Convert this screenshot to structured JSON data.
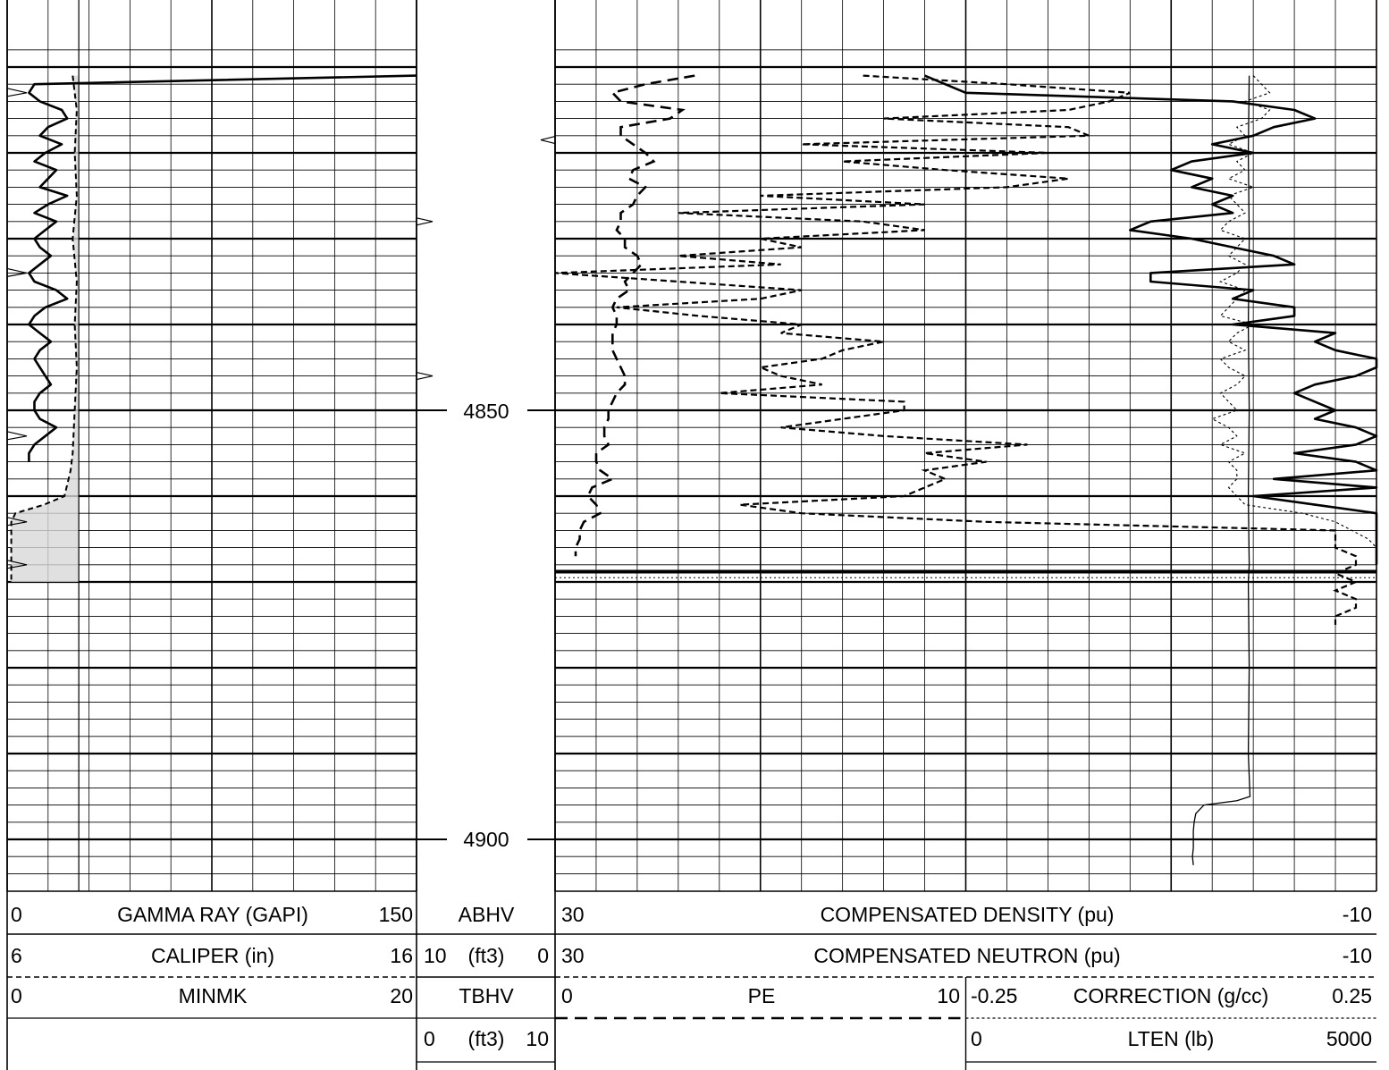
{
  "chart_data": {
    "type": "line",
    "depth_axis": {
      "labels": [
        "4850",
        "4900"
      ],
      "unit": ""
    },
    "track1": {
      "scales": [
        {
          "left": "0",
          "name": "GAMMA RAY (GAPI)",
          "right": "150"
        },
        {
          "left": "6",
          "name": "CALIPER (in)",
          "right": "16"
        },
        {
          "left": "0",
          "name": "MINMK",
          "right": "20"
        }
      ]
    },
    "depth_track": {
      "scales": [
        {
          "name": "ABHV",
          "left": "10",
          "unit": "(ft3)",
          "right": "0"
        },
        {
          "name": "TBHV",
          "left": "0",
          "unit": "(ft3)",
          "right": "10"
        }
      ]
    },
    "track2": {
      "scales": [
        {
          "left": "30",
          "name": "COMPENSATED DENSITY (pu)",
          "right": "-10"
        },
        {
          "left": "30",
          "name": "COMPENSATED NEUTRON (pu)",
          "right": "-10"
        },
        {
          "left": "0",
          "name": "PE",
          "right": "10"
        },
        {
          "left": "-0.25",
          "name": "CORRECTION (g/cc)",
          "right": "0.25"
        },
        {
          "left": "0",
          "name": "LTEN (lb)",
          "right": "5000"
        }
      ]
    },
    "series": [
      {
        "name": "GAMMA RAY (GAPI)",
        "depth": [
          4811,
          4812,
          4813,
          4814,
          4815,
          4816,
          4817,
          4818,
          4819,
          4820,
          4821,
          4822,
          4823,
          4824,
          4825,
          4826,
          4827,
          4828,
          4829,
          4830,
          4831,
          4832,
          4833,
          4834,
          4835,
          4836,
          4837,
          4838,
          4839,
          4840,
          4841,
          4842,
          4843,
          4844,
          4845,
          4846,
          4847,
          4848,
          4849,
          4850,
          4851,
          4852,
          4853,
          4854,
          4855,
          4856
        ],
        "values": [
          150,
          10,
          8,
          12,
          20,
          22,
          15,
          12,
          20,
          14,
          10,
          18,
          15,
          12,
          22,
          15,
          10,
          18,
          14,
          10,
          12,
          16,
          12,
          8,
          10,
          18,
          22,
          14,
          10,
          8,
          12,
          16,
          12,
          10,
          12,
          14,
          16,
          12,
          10,
          10,
          12,
          18,
          14,
          10,
          8,
          8
        ]
      },
      {
        "name": "CALIPER (in)",
        "depth": [
          4811,
          4815,
          4820,
          4825,
          4830,
          4835,
          4840,
          4845,
          4850,
          4855,
          4857,
          4860,
          4861,
          4862,
          4863,
          4870
        ],
        "values": [
          7.6,
          7.7,
          7.65,
          7.7,
          7.6,
          7.7,
          7.65,
          7.7,
          7.65,
          7.6,
          7.55,
          7.4,
          6.9,
          6.2,
          6.1,
          6.1
        ]
      },
      {
        "name": "COMPENSATED DENSITY (pu)",
        "depth": [
          4811,
          4812,
          4813,
          4814,
          4815,
          4816,
          4817,
          4818,
          4819,
          4820,
          4821,
          4822,
          4823,
          4824,
          4825,
          4826,
          4827,
          4828,
          4829,
          4830,
          4831,
          4832,
          4833,
          4834,
          4835,
          4836,
          4837,
          4838,
          4839,
          4840,
          4841,
          4842,
          4843,
          4844,
          4845,
          4846,
          4847,
          4848,
          4849,
          4850,
          4851,
          4852,
          4853,
          4854,
          4855,
          4856,
          4857,
          4858,
          4859,
          4860,
          4861,
          4862,
          4863,
          4864,
          4865,
          4866,
          4867,
          4868
        ],
        "values": [
          12,
          11,
          10,
          -3,
          -6,
          -7,
          -5,
          -4,
          -2,
          -4,
          -1,
          0,
          -2,
          -1,
          -3,
          -2,
          -3,
          1,
          2,
          -1,
          -3,
          -5,
          -6,
          1,
          1,
          -4,
          -3,
          -6,
          -6,
          -3,
          -8,
          -7,
          -8,
          -12,
          -10,
          -9,
          -7,
          -6,
          -7,
          -8,
          -7,
          -9,
          -10,
          -9,
          -6,
          -9,
          -11,
          -5,
          -10,
          -4,
          -7,
          -13,
          -10,
          -13,
          -11,
          -12,
          -20,
          -20
        ]
      },
      {
        "name": "COMPENSATED NEUTRON (pu)",
        "depth": [
          4811,
          4812,
          4813,
          4814,
          4815,
          4816,
          4817,
          4818,
          4819,
          4820,
          4821,
          4822,
          4823,
          4824,
          4825,
          4826,
          4827,
          4828,
          4829,
          4830,
          4831,
          4832,
          4833,
          4834,
          4835,
          4836,
          4837,
          4838,
          4839,
          4840,
          4841,
          4842,
          4843,
          4844,
          4845,
          4846,
          4847,
          4848,
          4849,
          4850,
          4851,
          4852,
          4853,
          4854,
          4855,
          4856,
          4857,
          4858,
          4859,
          4860,
          4861,
          4862,
          4863,
          4864,
          4865,
          4866,
          4867,
          4868,
          4869,
          4870,
          4871,
          4872,
          4873,
          4874,
          4875
        ],
        "values": [
          15,
          8,
          2,
          3,
          5,
          14,
          5,
          4,
          18,
          6,
          16,
          11,
          5,
          8,
          20,
          12,
          24,
          15,
          12,
          20,
          18,
          24,
          19,
          30,
          24,
          18,
          20,
          27,
          23,
          18,
          19,
          14,
          16,
          17,
          20,
          19,
          17,
          22,
          13,
          13,
          16,
          19,
          14,
          7,
          12,
          9,
          12,
          11,
          12,
          13,
          21,
          18,
          9,
          -8,
          -8,
          -8,
          -9,
          -9,
          -8,
          -9,
          -8,
          -9,
          -9,
          -8,
          -8
        ]
      },
      {
        "name": "PE",
        "depth": [
          4811,
          4812,
          4813,
          4814,
          4815,
          4816,
          4817,
          4818,
          4819,
          4820,
          4821,
          4822,
          4823,
          4824,
          4825,
          4826,
          4827,
          4828,
          4829,
          4830,
          4831,
          4832,
          4833,
          4834,
          4835,
          4836,
          4837,
          4838,
          4839,
          4840,
          4841,
          4842,
          4843,
          4844,
          4845,
          4846,
          4847,
          4848,
          4849,
          4850,
          4851,
          4852,
          4853,
          4854,
          4855,
          4856,
          4857,
          4858,
          4859,
          4860,
          4861,
          4862,
          4863,
          4864,
          4865,
          4866,
          4867
        ],
        "values": [
          3.4,
          2.2,
          1.4,
          1.6,
          3.1,
          2.8,
          1.6,
          1.6,
          1.9,
          2.2,
          2.4,
          1.9,
          1.8,
          2.2,
          2.0,
          1.9,
          1.6,
          1.6,
          1.5,
          1.7,
          1.7,
          2.0,
          2.1,
          1.9,
          1.7,
          1.8,
          1.5,
          1.4,
          1.5,
          1.5,
          1.4,
          1.4,
          1.4,
          1.5,
          1.6,
          1.7,
          1.7,
          1.5,
          1.4,
          1.3,
          1.3,
          1.2,
          1.2,
          1.3,
          1.0,
          1.0,
          1.1,
          1.4,
          0.9,
          0.8,
          1.0,
          1.1,
          0.7,
          0.6,
          0.6,
          0.5,
          0.5
        ]
      },
      {
        "name": "CORRECTION (g/cc)",
        "depth": [
          4811,
          4812,
          4813,
          4814,
          4815,
          4816,
          4817,
          4818,
          4819,
          4820,
          4821,
          4822,
          4823,
          4824,
          4825,
          4826,
          4827,
          4828,
          4829,
          4830,
          4831,
          4832,
          4833,
          4834,
          4835,
          4836,
          4837,
          4838,
          4839,
          4840,
          4841,
          4842,
          4843,
          4844,
          4845,
          4846,
          4847,
          4848,
          4849,
          4850,
          4851,
          4852,
          4853,
          4854,
          4855,
          4856,
          4857,
          4858,
          4859,
          4860,
          4861,
          4862,
          4863,
          4864,
          4865,
          4866,
          4867,
          4868
        ],
        "values": [
          0.1,
          0.11,
          0.12,
          0.09,
          0.12,
          0.11,
          0.08,
          0.09,
          0.07,
          0.1,
          0.08,
          0.09,
          0.07,
          0.1,
          0.07,
          0.08,
          0.09,
          0.07,
          0.06,
          0.09,
          0.08,
          0.07,
          0.09,
          0.08,
          0.06,
          0.09,
          0.08,
          0.07,
          0.06,
          0.1,
          0.08,
          0.07,
          0.09,
          0.06,
          0.07,
          0.09,
          0.08,
          0.06,
          0.07,
          0.08,
          0.05,
          0.07,
          0.08,
          0.06,
          0.09,
          0.07,
          0.08,
          0.08,
          0.07,
          0.08,
          0.09,
          0.16,
          0.2,
          0.22,
          0.24,
          0.25,
          0.25,
          0.25
        ]
      },
      {
        "name": "LTEN (lb)",
        "depth": [
          4811,
          4820,
          4830,
          4840,
          4850,
          4860,
          4868,
          4870,
          4880,
          4890,
          4895,
          4895.5,
          4896,
          4897,
          4898,
          4899,
          4900,
          4901,
          4902,
          4903
        ],
        "values": [
          3450,
          3440,
          3450,
          3440,
          3450,
          3440,
          3450,
          3440,
          3450,
          3440,
          3460,
          3300,
          2900,
          2800,
          2780,
          2770,
          2770,
          2770,
          2760,
          2770
        ]
      }
    ]
  },
  "colors": {
    "grid_major": "#000000",
    "grid_minor": "#000000",
    "fill": "#d8d8d8",
    "curve": "#000000"
  }
}
